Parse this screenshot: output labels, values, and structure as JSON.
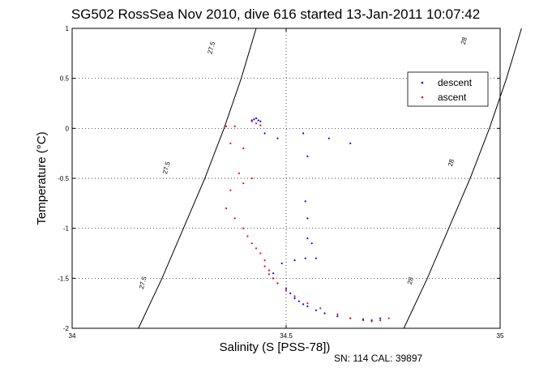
{
  "chart_data": {
    "type": "scatter",
    "title": "SG502 RossSea Nov 2010, dive 616 started 13-Jan-2011 10:07:42",
    "xlabel": "Salinity (S [PSS-78])",
    "ylabel": "Temperature (°C)",
    "xlim": [
      34,
      35
    ],
    "ylim": [
      -2,
      1
    ],
    "xticks": [
      34,
      34.5,
      35
    ],
    "xtick_labels": [
      "34",
      "34.5",
      "35"
    ],
    "yticks": [
      -2,
      -1.5,
      -1,
      -0.5,
      0,
      0.5,
      1
    ],
    "ytick_labels": [
      "-2",
      "-1.5",
      "-1",
      "-0.5",
      "0",
      "0.5",
      "1"
    ],
    "grid": true,
    "legend_position": "top-right",
    "footnote": "SN: 114  CAL: 39897",
    "colors": {
      "descent": "#0000ff",
      "ascent": "#ff0000",
      "axes": "#000000"
    },
    "isopycnals": [
      {
        "label": "27.5",
        "points": [
          [
            34.155,
            -2
          ],
          [
            34.21,
            -1.5
          ],
          [
            34.26,
            -1.0
          ],
          [
            34.31,
            -0.5
          ],
          [
            34.355,
            0
          ],
          [
            34.395,
            0.5
          ],
          [
            34.43,
            1
          ]
        ],
        "label_positions": [
          [
            34.33,
            0.8
          ],
          [
            34.225,
            -0.4
          ],
          [
            34.17,
            -1.55
          ]
        ]
      },
      {
        "label": "28",
        "points": [
          [
            34.775,
            -2
          ],
          [
            34.83,
            -1.5
          ],
          [
            34.88,
            -1.0
          ],
          [
            34.93,
            -0.5
          ],
          [
            34.975,
            0
          ],
          [
            35.015,
            0.5
          ],
          [
            35.05,
            1
          ]
        ],
        "label_positions": [
          [
            34.92,
            0.87
          ],
          [
            34.89,
            -0.35
          ],
          [
            34.795,
            -1.53
          ]
        ]
      }
    ],
    "series": [
      {
        "name": "descent",
        "color": "#0000ff",
        "x": [
          34.42,
          34.425,
          34.43,
          34.435,
          34.44,
          34.45,
          34.48,
          34.54,
          34.55,
          34.6,
          34.65,
          34.545,
          34.55,
          34.55,
          34.56,
          34.57,
          34.545,
          34.52,
          34.49,
          34.47,
          34.47,
          34.48,
          34.5,
          34.51,
          34.52,
          34.53,
          34.54,
          34.55,
          34.57,
          34.59,
          34.62,
          34.65,
          34.68,
          34.7,
          34.72
        ],
        "y": [
          0.08,
          0.09,
          0.1,
          0.08,
          0.07,
          -0.05,
          -0.1,
          -0.05,
          -0.28,
          -0.1,
          -0.15,
          -0.73,
          -0.9,
          -1.1,
          -1.15,
          -1.3,
          -1.3,
          -1.32,
          -1.35,
          -1.45,
          -1.5,
          -1.55,
          -1.6,
          -1.65,
          -1.7,
          -1.73,
          -1.76,
          -1.78,
          -1.82,
          -1.85,
          -1.88,
          -1.9,
          -1.91,
          -1.92,
          -1.9
        ]
      },
      {
        "name": "ascent",
        "color": "#ff0000",
        "x": [
          34.36,
          34.37,
          34.38,
          34.4,
          34.42,
          34.43,
          34.44,
          34.39,
          34.37,
          34.4,
          34.42,
          34.36,
          34.38,
          34.4,
          34.41,
          34.42,
          34.43,
          34.44,
          34.45,
          34.45,
          34.46,
          34.46,
          34.47,
          34.48,
          34.5,
          34.52,
          34.55,
          34.58,
          34.62,
          34.65,
          34.68,
          34.7,
          34.72,
          34.74
        ],
        "y": [
          0.02,
          -0.15,
          0.02,
          -0.2,
          0.07,
          0.05,
          0.03,
          -0.45,
          -0.62,
          -0.55,
          -0.5,
          -0.8,
          -0.9,
          -1.0,
          -1.08,
          -1.15,
          -1.2,
          -1.25,
          -1.32,
          -1.38,
          -1.42,
          -1.46,
          -1.5,
          -1.55,
          -1.62,
          -1.68,
          -1.75,
          -1.8,
          -1.86,
          -1.9,
          -1.92,
          -1.93,
          -1.92,
          -1.9
        ]
      }
    ]
  }
}
